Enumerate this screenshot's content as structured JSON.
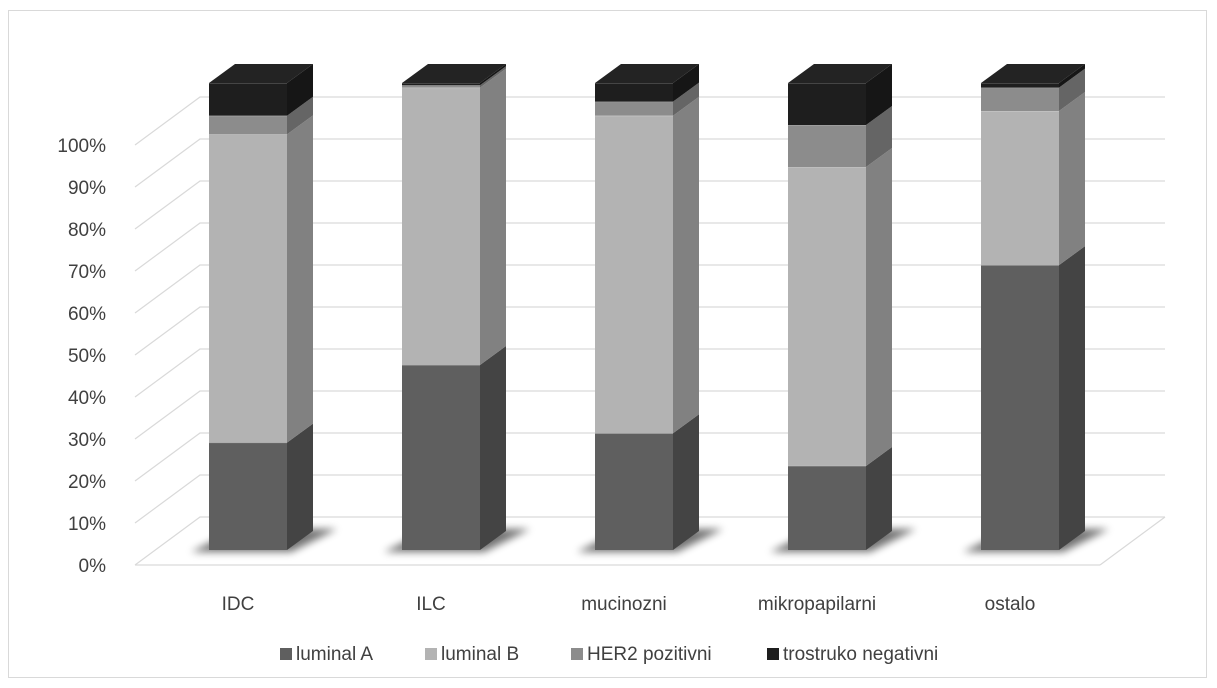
{
  "chart_data": {
    "type": "bar",
    "stacked": "percent",
    "three_d": true,
    "categories": [
      "IDC",
      "ILC",
      "mucinozni",
      "mikropapilarni",
      "ostalo"
    ],
    "series": [
      {
        "name": "luminal A",
        "values": [
          23,
          40,
          25,
          18,
          61
        ],
        "color": "#5f5f5f"
      },
      {
        "name": "luminal B",
        "values": [
          66,
          60,
          68,
          64,
          33
        ],
        "color": "#b3b3b3"
      },
      {
        "name": "HER2 pozitivni",
        "values": [
          4,
          0.5,
          3,
          9,
          5
        ],
        "color": "#8c8c8c"
      },
      {
        "name": "trostruko negativni",
        "values": [
          7,
          0.5,
          4,
          9,
          1
        ],
        "color": "#1e1e1e"
      }
    ],
    "y_ticks": [
      "0%",
      "10%",
      "20%",
      "30%",
      "40%",
      "50%",
      "60%",
      "70%",
      "80%",
      "90%",
      "100%"
    ],
    "ylim": [
      0,
      100
    ],
    "grid": true,
    "legend_position": "bottom"
  }
}
